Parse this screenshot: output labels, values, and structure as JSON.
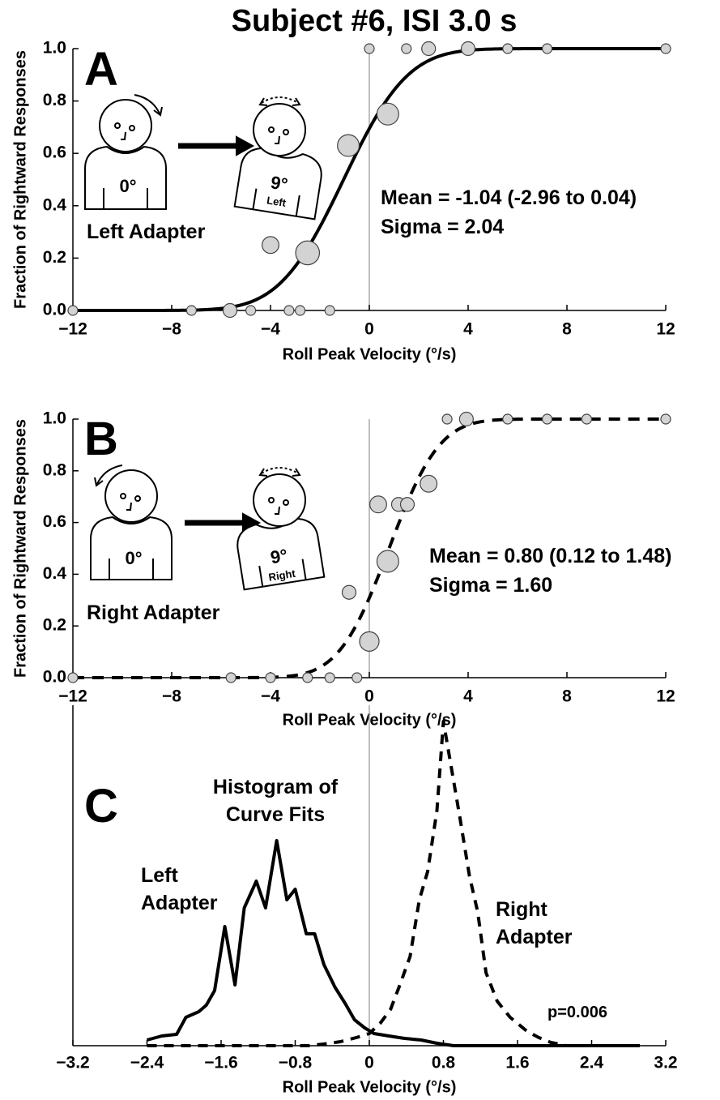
{
  "title": "Subject #6, ISI 3.0 s",
  "chart_data": [
    {
      "type": "scatter",
      "panel": "A",
      "xlabel": "Roll Peak Velocity (°/s)",
      "ylabel": "Fraction of Rightward Responses",
      "xlim": [
        -12,
        12
      ],
      "ylim": [
        0,
        1
      ],
      "xticks": [
        {
          "value": -12,
          "label": "−12"
        },
        {
          "value": -8,
          "label": "−8"
        },
        {
          "value": -4,
          "label": "−4"
        },
        0,
        4,
        8,
        12
      ],
      "yticks": [
        {
          "value": 0,
          "label": "0.0"
        },
        0.2,
        0.4,
        0.6,
        0.8,
        {
          "value": 1,
          "label": "1.0"
        }
      ],
      "refline_x": 0,
      "x": [
        -12,
        -7.2,
        -5.64,
        -4.8,
        -4,
        -3.25,
        -2.8,
        -2.5,
        -1.6,
        -0.85,
        0,
        0.75,
        1.5,
        2.4,
        4,
        5.6,
        7.2,
        12
      ],
      "values": [
        0,
        0,
        0,
        0,
        0.25,
        0,
        0,
        0.22,
        0,
        0.63,
        1,
        0.75,
        1,
        1,
        1,
        1,
        1,
        1
      ],
      "sizes": [
        1,
        1,
        2,
        1,
        3,
        1,
        1,
        6,
        1,
        5,
        1,
        5,
        1,
        2,
        2,
        1,
        1,
        1
      ],
      "marker_color": "#d3d3d3",
      "color": "#000000",
      "line_style": "solid",
      "fit": {
        "mean": -1.04,
        "sigma": 2.04
      },
      "annotations": [
        "Mean = -1.04 (-2.96 to 0.04)",
        "Sigma = 2.04"
      ],
      "illustration": {
        "start": "0°",
        "end": "9°",
        "direction": "Left",
        "label": "Left Adapter"
      }
    },
    {
      "type": "scatter",
      "panel": "B",
      "xlabel": "Roll Peak Velocity (°/s)",
      "ylabel": "Fraction of Rightward Responses",
      "xlim": [
        -12,
        12
      ],
      "ylim": [
        0,
        1
      ],
      "xticks": [
        {
          "value": -12,
          "label": "−12"
        },
        {
          "value": -8,
          "label": "−8"
        },
        {
          "value": -4,
          "label": "−4"
        },
        0,
        4,
        8,
        12
      ],
      "yticks": [
        {
          "value": 0,
          "label": "0.0"
        },
        0.2,
        0.4,
        0.6,
        0.8,
        {
          "value": 1,
          "label": "1.0"
        }
      ],
      "refline_x": 0,
      "x": [
        -12,
        -5.6,
        -4,
        -2.5,
        -1.6,
        -0.82,
        -0.5,
        0,
        0.36,
        0.75,
        1.18,
        1.54,
        2.4,
        3.15,
        3.93,
        5.6,
        7.2,
        8.8,
        12
      ],
      "values": [
        0,
        0,
        0,
        0,
        0,
        0.33,
        0,
        0.14,
        0.67,
        0.45,
        0.67,
        0.67,
        0.75,
        1,
        1,
        1,
        1,
        1,
        1
      ],
      "sizes": [
        1,
        1,
        1,
        1,
        1,
        2,
        1,
        4,
        3,
        5,
        2,
        2,
        3,
        1,
        2,
        1,
        1,
        1,
        1
      ],
      "marker_color": "#d3d3d3",
      "color": "#000000",
      "line_style": "dashed",
      "fit": {
        "mean": 0.8,
        "sigma": 1.6
      },
      "annotations": [
        "Mean = 0.80 (0.12 to 1.48)",
        "Sigma = 1.60"
      ],
      "illustration": {
        "start": "0°",
        "end": "9°",
        "direction": "Right",
        "label": "Right Adapter"
      }
    },
    {
      "type": "line",
      "panel": "C",
      "title": "Histogram of Curve Fits",
      "xlabel": "Roll Peak Velocity (°/s)",
      "xlim": [
        -3.2,
        3.2
      ],
      "ylim": [
        0,
        420
      ],
      "xticks": [
        {
          "value": -3.2,
          "label": "−3.2"
        },
        {
          "value": -2.4,
          "label": "−2.4"
        },
        {
          "value": -1.6,
          "label": "−1.6"
        },
        {
          "value": -0.8,
          "label": "−0.8"
        },
        0,
        0.8,
        1.6,
        2.4,
        3.2
      ],
      "refline_x": 0,
      "annotation": "p=0.006",
      "series": [
        {
          "name": "Left Adapter",
          "color": "#000000",
          "line_style": "solid",
          "x": [
            -2.4,
            -2.24,
            -2.08,
            -1.98,
            -1.84,
            -1.76,
            -1.67,
            -1.56,
            -1.45,
            -1.35,
            -1.22,
            -1.12,
            -1.0,
            -0.89,
            -0.8,
            -0.68,
            -0.59,
            -0.49,
            -0.37,
            -0.26,
            -0.16,
            -0.05,
            0.05,
            0.21,
            0.38,
            0.56,
            0.73,
            0.91,
            1.26,
            2.13,
            2.92
          ],
          "values": [
            7,
            12,
            14,
            35,
            42,
            50,
            68,
            147,
            75,
            170,
            203,
            170,
            253,
            180,
            193,
            138,
            138,
            100,
            72,
            52,
            32,
            22,
            15,
            12,
            9,
            7,
            3,
            0,
            0,
            0,
            0
          ]
        },
        {
          "name": "Right Adapter",
          "color": "#000000",
          "line_style": "dashed",
          "x": [
            -2.4,
            -0.66,
            -0.49,
            -0.31,
            -0.14,
            0,
            0.12,
            0.23,
            0.33,
            0.44,
            0.54,
            0.63,
            0.73,
            0.8,
            0.89,
            0.98,
            1.08,
            1.17,
            1.26,
            1.38,
            1.52,
            1.7,
            1.83,
            1.96,
            2.13,
            2.88
          ],
          "values": [
            0,
            0,
            2,
            5,
            10,
            15,
            28,
            45,
            75,
            110,
            180,
            215,
            290,
            400,
            340,
            280,
            210,
            165,
            90,
            55,
            35,
            18,
            10,
            4,
            0,
            0
          ]
        }
      ]
    }
  ]
}
